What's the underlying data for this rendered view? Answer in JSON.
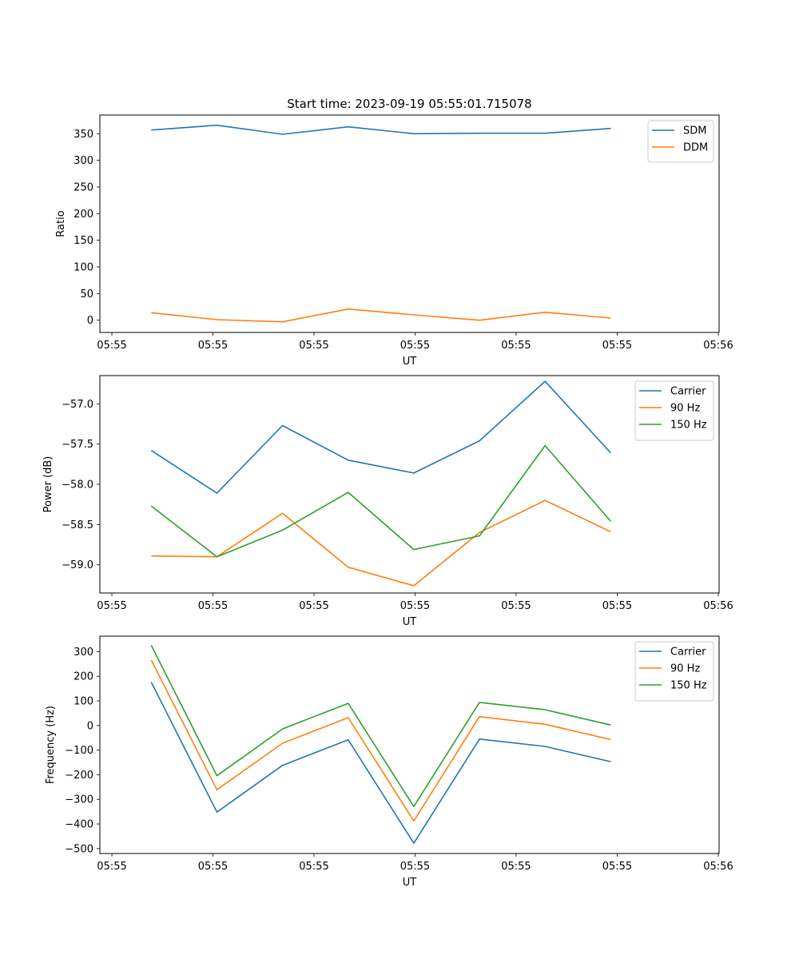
{
  "colors": {
    "blue": "#1f77b4",
    "orange": "#ff7f0e",
    "green": "#2ca02c"
  },
  "chart_data": [
    {
      "type": "line",
      "title": "Start time: 2023-09-19 05:55:01.715078",
      "xlabel": "UT",
      "ylabel": "Ratio",
      "x_ticks": [
        "05:55",
        "05:55",
        "05:55",
        "05:55",
        "05:55",
        "05:55",
        "05:56"
      ],
      "y_ticks": [
        0,
        50,
        100,
        150,
        200,
        250,
        300,
        350
      ],
      "y_tick_labels": [
        "0",
        "50",
        "100",
        "150",
        "200",
        "250",
        "300",
        "350"
      ],
      "xlim": [
        0,
        1
      ],
      "ylim": [
        -23,
        385
      ],
      "legend": "top-right",
      "x": [
        0.083,
        0.189,
        0.295,
        0.401,
        0.507,
        0.613,
        0.719,
        0.825
      ],
      "series": [
        {
          "name": "SDM",
          "color": "#1f77b4",
          "values": [
            357,
            366,
            349,
            363,
            350,
            351,
            351,
            360
          ]
        },
        {
          "name": "DDM",
          "color": "#ff7f0e",
          "values": [
            14,
            1,
            -3,
            21,
            10,
            0,
            15,
            4
          ]
        }
      ]
    },
    {
      "type": "line",
      "title": "",
      "xlabel": "UT",
      "ylabel": "Power (dB)",
      "x_ticks": [
        "05:55",
        "05:55",
        "05:55",
        "05:55",
        "05:55",
        "05:55",
        "05:56"
      ],
      "y_ticks": [
        -59.0,
        -58.5,
        -58.0,
        -57.5,
        -57.0
      ],
      "y_tick_labels": [
        "−59.0",
        "−58.5",
        "−58.0",
        "−57.5",
        "−57.0"
      ],
      "xlim": [
        0,
        1
      ],
      "ylim": [
        -59.35,
        -56.65
      ],
      "legend": "top-right",
      "x": [
        0.083,
        0.189,
        0.295,
        0.401,
        0.507,
        0.613,
        0.719,
        0.825
      ],
      "series": [
        {
          "name": "Carrier",
          "color": "#1f77b4",
          "values": [
            -57.58,
            -58.11,
            -57.27,
            -57.7,
            -57.86,
            -57.46,
            -56.72,
            -57.61
          ]
        },
        {
          "name": "90 Hz",
          "color": "#ff7f0e",
          "values": [
            -58.89,
            -58.9,
            -58.36,
            -59.03,
            -59.26,
            -58.6,
            -58.2,
            -58.59
          ]
        },
        {
          "name": "150 Hz",
          "color": "#2ca02c",
          "values": [
            -58.27,
            -58.9,
            -58.57,
            -58.1,
            -58.81,
            -58.64,
            -57.52,
            -58.46
          ]
        }
      ]
    },
    {
      "type": "line",
      "title": "",
      "xlabel": "UT",
      "ylabel": "Frequency (Hz)",
      "x_ticks": [
        "05:55",
        "05:55",
        "05:55",
        "05:55",
        "05:55",
        "05:55",
        "05:56"
      ],
      "y_ticks": [
        -500,
        -400,
        -300,
        -200,
        -100,
        0,
        100,
        200,
        300
      ],
      "y_tick_labels": [
        "−500",
        "−400",
        "−300",
        "−200",
        "−100",
        "0",
        "100",
        "200",
        "300"
      ],
      "xlim": [
        0,
        1
      ],
      "ylim": [
        -520,
        363
      ],
      "legend": "top-right",
      "x": [
        0.083,
        0.189,
        0.295,
        0.401,
        0.507,
        0.613,
        0.719,
        0.825
      ],
      "series": [
        {
          "name": "Carrier",
          "color": "#1f77b4",
          "values": [
            176,
            -352,
            -162,
            -58,
            -478,
            -55,
            -85,
            -147
          ]
        },
        {
          "name": "90 Hz",
          "color": "#ff7f0e",
          "values": [
            266,
            -261,
            -72,
            32,
            -388,
            36,
            5,
            -57
          ]
        },
        {
          "name": "150 Hz",
          "color": "#2ca02c",
          "values": [
            326,
            -204,
            -14,
            90,
            -329,
            94,
            64,
            2
          ]
        }
      ]
    }
  ]
}
